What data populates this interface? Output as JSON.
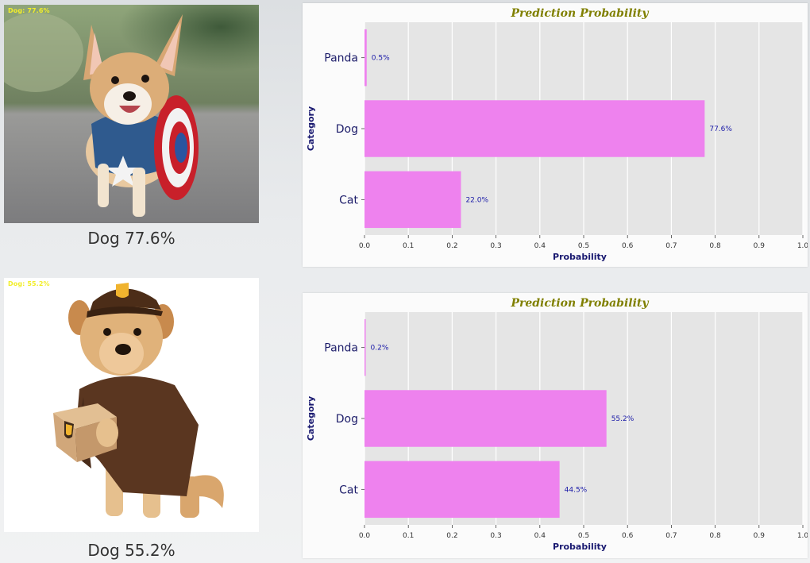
{
  "results": [
    {
      "overlay_label": "Dog: 77.6%",
      "caption": "Dog 77.6%",
      "photo": "corgi in captain-america costume with shield"
    },
    {
      "overlay_label": "Dog: 55.2%",
      "caption": "Dog 55.2%",
      "photo": "dog in ups delivery costume holding parcel"
    }
  ],
  "colors": {
    "bar": "#ee82ee",
    "plot_bg": "#e5e5e5",
    "title": "#808000",
    "axis_label": "#191970",
    "value_label": "#1a1aa8"
  },
  "chart_data": [
    {
      "type": "bar",
      "orientation": "horizontal",
      "title": "Prediction Probability",
      "xlabel": "Probability",
      "ylabel": "Category",
      "categories": [
        "Panda",
        "Dog",
        "Cat"
      ],
      "values": [
        0.005,
        0.776,
        0.22
      ],
      "value_labels": [
        "0.5%",
        "77.6%",
        "22.0%"
      ],
      "xlim": [
        0,
        1.0
      ],
      "xticks": [
        "0.0",
        "0.1",
        "0.2",
        "0.3",
        "0.4",
        "0.5",
        "0.6",
        "0.7",
        "0.8",
        "0.9",
        "1.0"
      ],
      "grid": true
    },
    {
      "type": "bar",
      "orientation": "horizontal",
      "title": "Prediction Probability",
      "xlabel": "Probability",
      "ylabel": "Category",
      "categories": [
        "Panda",
        "Dog",
        "Cat"
      ],
      "values": [
        0.002,
        0.552,
        0.445
      ],
      "value_labels": [
        "0.2%",
        "55.2%",
        "44.5%"
      ],
      "xlim": [
        0,
        1.0
      ],
      "xticks": [
        "0.0",
        "0.1",
        "0.2",
        "0.3",
        "0.4",
        "0.5",
        "0.6",
        "0.7",
        "0.8",
        "0.9",
        "1.0"
      ],
      "grid": true
    }
  ]
}
